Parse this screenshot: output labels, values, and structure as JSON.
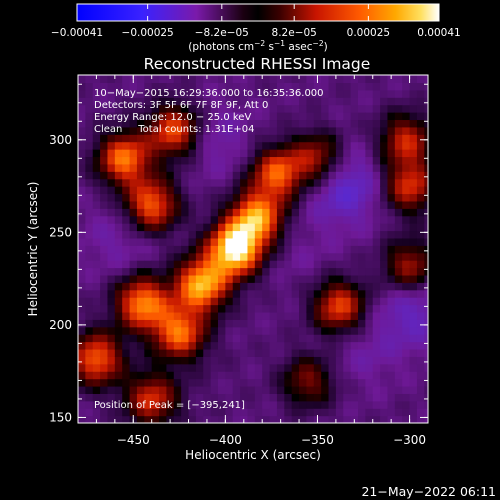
{
  "chart_data": {
    "type": "heatmap",
    "title": "Reconstructed RHESSI Image",
    "xlabel": "Heliocentric X (arcsec)",
    "ylabel": "Heliocentric Y (arcsec)",
    "xlim": [
      -480,
      -290
    ],
    "ylim": [
      147,
      335
    ],
    "x_ticks": [
      -450,
      -400,
      -350,
      -300
    ],
    "x_tick_labels": [
      "−450",
      "−400",
      "−350",
      "−300"
    ],
    "y_ticks": [
      150,
      200,
      250,
      300
    ],
    "y_tick_labels": [
      "150",
      "200",
      "250",
      "300"
    ],
    "colorbar": {
      "min": -0.00041,
      "max": 0.00041,
      "ticks": [
        -0.00041,
        -0.00025,
        -8.2e-05,
        8.2e-05,
        0.00025,
        0.00041
      ],
      "tick_labels": [
        "−0.00041",
        "−0.00025",
        "−8.2e−05",
        "8.2e−05",
        "0.00025",
        "0.00041"
      ],
      "units_label": "(photons cm",
      "units_exp1": "−2",
      "units_mid": " s",
      "units_exp2": "−1",
      "units_mid2": " asec",
      "units_exp3": "−2",
      "units_end": ")"
    },
    "info_lines": [
      "10−May−2015 16:29:36.000 to 16:35:36.000",
      "Detectors: 3F 5F 6F 7F 8F 9F, Att 0",
      "Energy Range: 12.0 − 25.0 keV",
      "Clean     Total counts: 1.31E+04"
    ],
    "peak_label": "Position of Peak = [−395,241]",
    "peak_position": [
      -395,
      241
    ],
    "bright_features": [
      {
        "x": -455,
        "y": 290,
        "value": 0.00026
      },
      {
        "x": -428,
        "y": 305,
        "value": 0.00022
      },
      {
        "x": -440,
        "y": 265,
        "value": 0.00024
      },
      {
        "x": -395,
        "y": 241,
        "value": 0.00041
      },
      {
        "x": -383,
        "y": 258,
        "value": 0.0003
      },
      {
        "x": -413,
        "y": 222,
        "value": 0.00033
      },
      {
        "x": -445,
        "y": 212,
        "value": 0.00028
      },
      {
        "x": -425,
        "y": 196,
        "value": 0.00025
      },
      {
        "x": -470,
        "y": 182,
        "value": 0.00024
      },
      {
        "x": -440,
        "y": 160,
        "value": 0.00018
      },
      {
        "x": -372,
        "y": 282,
        "value": 0.00023
      },
      {
        "x": -350,
        "y": 290,
        "value": 0.00015
      },
      {
        "x": -338,
        "y": 210,
        "value": 0.00021
      },
      {
        "x": -300,
        "y": 275,
        "value": 0.00018
      },
      {
        "x": -300,
        "y": 232,
        "value": 0.00014
      },
      {
        "x": -355,
        "y": 170,
        "value": 0.0001
      },
      {
        "x": -302,
        "y": 300,
        "value": 0.00016
      }
    ],
    "dark_features": [
      {
        "x": -405,
        "y": 300,
        "value": -0.00016
      },
      {
        "x": -335,
        "y": 275,
        "value": -0.00024
      },
      {
        "x": -360,
        "y": 240,
        "value": -0.00012
      },
      {
        "x": -458,
        "y": 247,
        "value": -0.00015
      },
      {
        "x": -298,
        "y": 207,
        "value": -0.0002
      },
      {
        "x": -325,
        "y": 185,
        "value": -0.00014
      },
      {
        "x": -410,
        "y": 170,
        "value": -8e-05
      }
    ],
    "grid": false,
    "colormap": "red-temperature (blue→purple→black→red→yellow→white)"
  },
  "footer_timestamp": "21−May−2022 06:11"
}
